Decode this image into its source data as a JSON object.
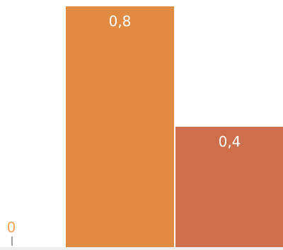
{
  "chart_data": {
    "type": "bar",
    "categories": [
      "",
      ""
    ],
    "values": [
      0.8,
      0.4
    ],
    "value_labels": [
      "0,8",
      "0,4"
    ],
    "bar_colors": [
      "#E08A42",
      "#CC6F4A"
    ],
    "x_tick_labels": [
      "0"
    ],
    "x_tick_color": "#F0A35C",
    "axis_color": "#9E9E9E",
    "baseline_color": "#EEEEEE",
    "title": "",
    "xlabel": "",
    "ylabel": "",
    "ylim": [
      0,
      0.8
    ],
    "grid": false,
    "legend": "none"
  }
}
